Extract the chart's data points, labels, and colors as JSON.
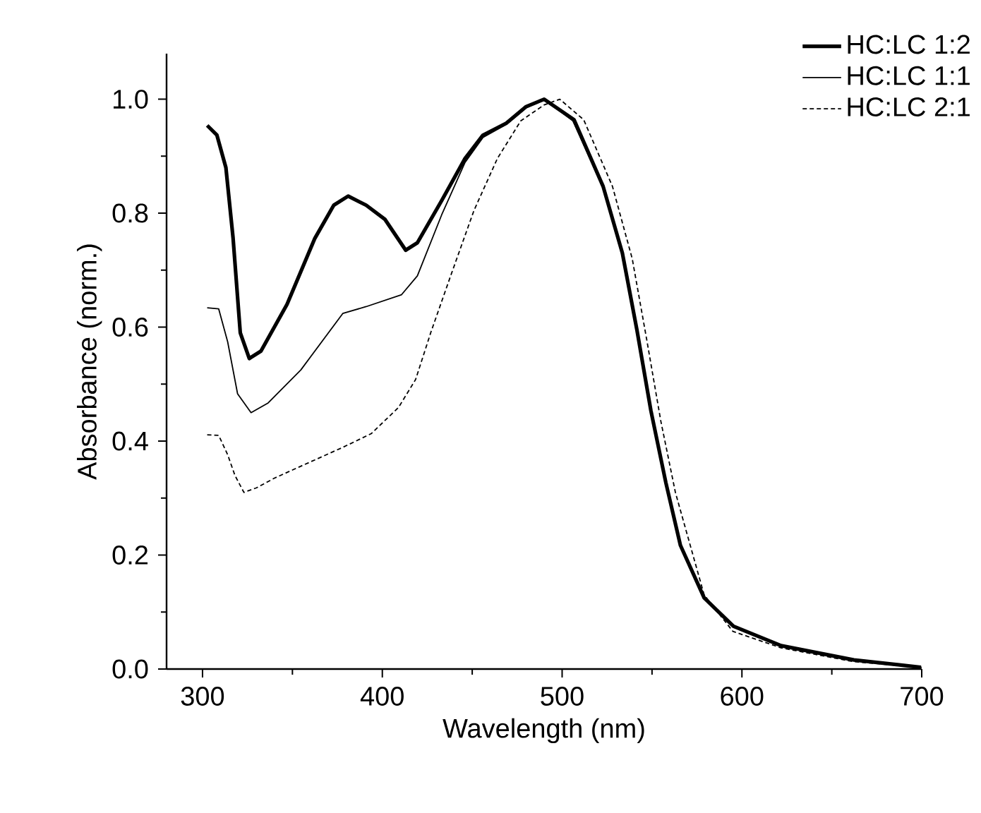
{
  "chart_data": {
    "type": "line",
    "xlabel": "Wavelength (nm)",
    "ylabel": "Absorbance (norm.)",
    "xlim": [
      280,
      700
    ],
    "ylim": [
      0,
      1.08
    ],
    "xticks": [
      300,
      400,
      500,
      600,
      700
    ],
    "yticks": [
      {
        "value": 0,
        "label": "0.0"
      },
      {
        "value": 0.2,
        "label": "0.2"
      },
      {
        "value": 0.4,
        "label": "0.4"
      },
      {
        "value": 0.6,
        "label": "0.6"
      },
      {
        "value": 0.8,
        "label": "0.8"
      },
      {
        "value": 1,
        "label": "1.0"
      }
    ],
    "legend": "top right",
    "grid": false,
    "marker": "none",
    "series": [
      {
        "name": "HC:LC 1:2",
        "color": "#000000",
        "line_style": "solid",
        "x": [
          302.6,
          308,
          313,
          317,
          321,
          326,
          332.5,
          347,
          362.5,
          373,
          381,
          391,
          401.5,
          413,
          419.5,
          433,
          446,
          456,
          469,
          480,
          490,
          506.6,
          522.8,
          533.5,
          541.6,
          549.4,
          557.7,
          565.8,
          579,
          595.3,
          621.8,
          662.3,
          699.6
        ],
        "values": [
          0.954,
          0.937,
          0.88,
          0.756,
          0.59,
          0.545,
          0.558,
          0.64,
          0.756,
          0.814,
          0.83,
          0.814,
          0.789,
          0.735,
          0.748,
          0.822,
          0.896,
          0.937,
          0.958,
          0.987,
          1.0,
          0.964,
          0.847,
          0.73,
          0.595,
          0.453,
          0.327,
          0.217,
          0.125,
          0.075,
          0.041,
          0.016,
          0.003
        ]
      },
      {
        "name": "HC:LC 1:1",
        "color": "#000000",
        "line_style": "solid",
        "x": [
          302.6,
          309,
          314,
          319.5,
          327,
          336.5,
          354.7,
          378,
          391,
          410.7,
          419.5,
          433,
          446,
          456,
          469,
          480,
          490,
          506,
          522.8,
          533.5,
          541.6,
          549.4,
          557.7,
          565.8,
          579,
          595.3,
          621.8,
          662.3,
          699.6
        ],
        "values": [
          0.634,
          0.632,
          0.574,
          0.483,
          0.45,
          0.467,
          0.525,
          0.624,
          0.636,
          0.657,
          0.69,
          0.797,
          0.889,
          0.933,
          0.956,
          0.985,
          1.0,
          0.962,
          0.845,
          0.728,
          0.592,
          0.45,
          0.324,
          0.215,
          0.123,
          0.074,
          0.04,
          0.015,
          0.003
        ]
      },
      {
        "name": "HC:LC 2:1",
        "color": "#000000",
        "line_style": "dashed",
        "x": [
          302.6,
          309,
          314,
          318,
          323,
          330,
          340,
          354.7,
          378,
          393.8,
          409,
          418.5,
          427,
          438,
          451,
          464,
          477,
          490,
          498.7,
          512,
          528,
          539,
          547,
          554.9,
          563,
          579,
          595,
          622,
          662,
          700
        ],
        "values": [
          0.411,
          0.41,
          0.376,
          0.34,
          0.31,
          0.318,
          0.335,
          0.356,
          0.389,
          0.413,
          0.459,
          0.508,
          0.591,
          0.69,
          0.805,
          0.896,
          0.962,
          0.99,
          1.0,
          0.964,
          0.847,
          0.72,
          0.579,
          0.435,
          0.31,
          0.13,
          0.066,
          0.037,
          0.013,
          0.003
        ]
      }
    ]
  }
}
